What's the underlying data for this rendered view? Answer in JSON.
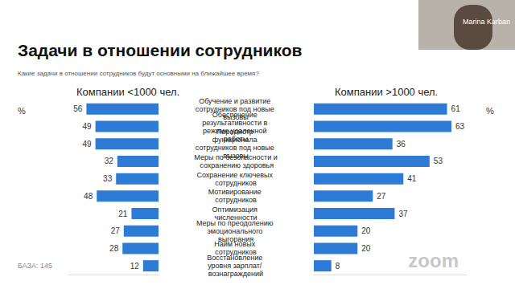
{
  "title": "Задачи в отношении сотрудников",
  "subtitle": "Какие задачи в отношении сотрудников будут основными на ближайшее время?",
  "base": "БАЗА: 145",
  "presenter": "Marina Karban",
  "watermark": "zoom",
  "chart_data": [
    {
      "type": "bar",
      "orientation": "horizontal",
      "title": "Компании <1000 чел.",
      "xlabel": "%",
      "categories": [
        "Обучение и развитие сотрудников под новые вызовы",
        "Обеспечение результативности в режиме удаленной работы",
        "Пересмотр функционала сотрудников под новые вызовы",
        "Меры по безопасности и сохранению здоровья",
        "Сохранение ключевых сотрудников",
        "Мотивирование сотрудников",
        "Оптимизация численности",
        "Меры по преодолению эмоционального выгорания",
        "Найм новых сотрудников",
        "Восстановление уровня зарплат/ вознаграждений"
      ],
      "values": [
        56,
        49,
        49,
        32,
        33,
        48,
        21,
        27,
        28,
        12
      ],
      "color": "#2e7bd6",
      "xlim": [
        0,
        70
      ],
      "data_labels": true,
      "tick_labels": "y"
    },
    {
      "type": "bar",
      "orientation": "horizontal",
      "title": "Компании >1000 чел.",
      "xlabel": "%",
      "categories": [
        "Обучение и развитие сотрудников под новые вызовы",
        "Обеспечение результативности в режиме удаленной работы",
        "Пересмотр функционала сотрудников под новые вызовы",
        "Меры по безопасности и сохранению здоровья",
        "Сохранение ключевых сотрудников",
        "Мотивирование сотрудников",
        "Оптимизация численности",
        "Меры по преодолению эмоционального выгорания",
        "Найм новых сотрудников",
        "Восстановление уровня зарплат/ вознаграждений"
      ],
      "values": [
        61,
        63,
        36,
        53,
        41,
        27,
        37,
        20,
        20,
        8
      ],
      "color": "#2e7bd6",
      "xlim": [
        0,
        70
      ],
      "data_labels": true,
      "tick_labels": false
    }
  ]
}
